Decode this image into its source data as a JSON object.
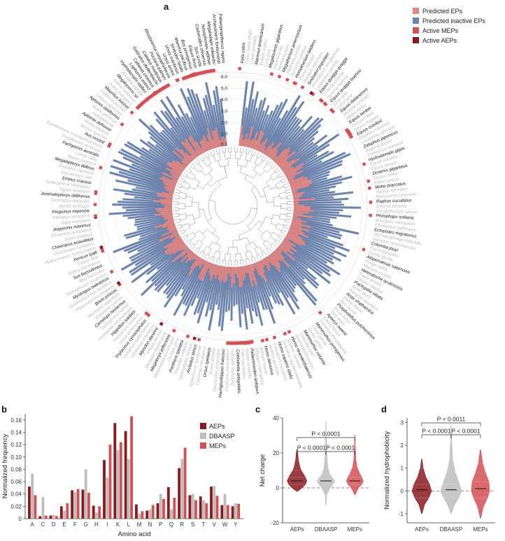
{
  "colors": {
    "predicted_eps": "#e8857c",
    "predicted_inactive": "#6c84ad",
    "active_meps": "#d35055",
    "active_aeps": "#8b1a1f",
    "dbaasp": "#bdbdbd",
    "text_dark": "#111111",
    "text_grey": "#b8b8b8"
  },
  "panel_labels": {
    "a": "a",
    "b": "b",
    "c": "c",
    "d": "d"
  },
  "chart_data": [
    {
      "panel": "a",
      "type": "bar",
      "layout": "circular",
      "legend_position": "top-right",
      "legend": [
        {
          "label": "Predicted EPs",
          "color": "#e8857c"
        },
        {
          "label": "Predicted inactive EPs",
          "color": "#6c84ad"
        },
        {
          "label": "Active MEPs",
          "color": "#d35055"
        },
        {
          "label": "Active AEPs",
          "color": "#8b1a1f"
        }
      ],
      "radial_ticks": [
        "0.1",
        "1.0",
        "2.0",
        "3.0",
        "4.0",
        "5.0",
        "6.0"
      ],
      "species_dark": [
        "Felis catus",
        "Mammut americanum",
        "Megaloceros giganteus",
        "Megatherium americanum",
        "Homotherium latidens",
        "Smilodon populator",
        "Equus quagga quagga",
        "Equus quagga boehmi",
        "Equus dalianensis",
        "Equus lambei",
        "Equus ovodovi",
        "Zalophus japonicus",
        "Hydrodamalis gigas",
        "Dinornis giganteus",
        "Moho braccatus",
        "Raphus cucullatus",
        "Pezophaps solitaria",
        "Ectopistes migratorius",
        "Columba jouyi",
        "Alopecoenas salamonis",
        "Heteralocha acutirostris",
        "Pachyptila vittata",
        "Anas chathamica",
        "Psephotellus pulcherrimus",
        "Apteryx owenii",
        "Mammuthus primigenius",
        "Mammuthus columbi",
        "Homo neanderthalensis",
        "Homo sapiens idaltu",
        "Homo denisova",
        "Palaeoloxodon antiquus",
        "Coelodonta antiquitatis",
        "Haringtonhippus francisci",
        "Ursus spelaeus",
        "Arctodus simus",
        "Panthera spelaea",
        "Megalonyx jeffersonii",
        "Mylodon darwinii",
        "Thylacinus cynocephalus",
        "Hippidion saldiasi",
        "Camelops hesternus",
        "Bison priscus",
        "Myotragus balearicus",
        "Sus bucculentus",
        "Xenicus lyalli",
        "Chaeropus ecaudatus",
        "Aepyornis maximus",
        "Pinguinus impennis",
        "Anomalopteryx didiformis",
        "Emeus crassus",
        "Megalapteryx didinus",
        "Pachyornis australis",
        "Aus innotat",
        "Aptornis defossor",
        "Aptornis otidiformis",
        "Mauritius kestrel",
        "Megaloceros sp.",
        "Hydrodamalis stelleri",
        "Lophornis extinct",
        "Callaeas cinereus",
        "Gallirallus dieffenbachii",
        "Cabalus modestus",
        "Porzana palmeri",
        "Rhodonessa caryophyllacea",
        "Ursus arctos",
        "Ursus maritimus",
        "Smilodon fatalis",
        "Mammut pacificus",
        "Bos primigenius",
        "Equus ferus",
        "Sus scrofa",
        "Castoroides ohioensis",
        "Nesophontes edithae",
        "Megaladapis edwardsi",
        "Archaeoindris fontoynontii",
        "Palaeopropithecus ingens"
      ],
      "species_grey": [
        "Canis lupus dingo",
        "Canis familiaris",
        "Vulpes vulpes",
        "Lynx lynx",
        "Panthera leo",
        "Panthera tigris",
        "Panthera pardus",
        "Acinonyx jubatus",
        "Puma concolor",
        "Neofelis nebulosa",
        "Prionailurus bengalensis",
        "Leopardus pardalis",
        "Crocuta crocuta",
        "Hyaena hyaena",
        "Gulo gulo",
        "Lutra lutra",
        "Mustela erminea",
        "Meles meles",
        "Procyon lotor",
        "Ailurus fulgens",
        "Elephas maximus",
        "Loxodonta africana",
        "Dugong dugon",
        "Trichechus manatus",
        "Equus caballus",
        "Equus asinus",
        "Equus zebra",
        "Equus grevyi",
        "Tapirus terrestris",
        "Rhinoceros unicornis",
        "Diceros bicornis",
        "Ceratotherium simum",
        "Bradypus variegatus",
        "Choloepus hoffmanni",
        "Myrmecophaga tridactyla",
        "Dasypus novemcinctus",
        "Pan troglodytes",
        "Gorilla gorilla",
        "Pongo abelii",
        "Macaca mulatta",
        "Papio anubis",
        "Cervus elaphus",
        "Alces alces",
        "Rangifer tarandus",
        "Dama dama",
        "Bos taurus",
        "Bison bison",
        "Ovis aries",
        "Capra hircus",
        "Camelus dromedarius",
        "Lama glama",
        "Gallus gallus",
        "Columba livia",
        "Anas platyrhynchos",
        "Struthio camelus",
        "Dromaius novaehollandiae",
        "Casuarius casuarius",
        "Apteryx australis",
        "Apteryx haastii",
        "Strigops habroptilus",
        "Nestor notabilis",
        "Falco punctatus",
        "Gallirallus australis",
        "Porphyrio hochstetteri",
        "Didunculus strigirostris",
        "Goura victoria",
        "Caloenas nicobarica",
        "Spheniscus humboldti",
        "Aptenodytes forsteri",
        "Physeter catodon",
        "Orcinus orca",
        "Balaenoptera musculus",
        "Monodon monoceros",
        "Phoca vitulina",
        "Odobenus rosmarus",
        "Zalophus californianus",
        "Ursus americanus",
        "Tremarctos ornatus",
        "Ailuropoda melanoleuca",
        "Sarcophilus harrisii",
        "Vombatus ursinus",
        "Macropus giganteus",
        "Phascolarctos cinereus",
        "Ornithorhynchus anatinus",
        "Tachyglossus aculeatus",
        "Mus musculus",
        "Rattus norvegicus",
        "Castor fiber",
        "Hydrochoerus hydrochaeris",
        "Oryctolagus cuniculus",
        "Sorex araneus",
        "Erinaceus europaeus",
        "Talpa europaea",
        "Pteropus vampyrus",
        "Myotis lucifugus",
        "Desmodus rotundus",
        "Tupaia belangeri",
        "Galeopterus variegatus",
        "Orycteropus afer",
        "Procavia capensis",
        "Manis javanica",
        "Lemur catta",
        "Propithecus verreauxi",
        "Daubentonia madagascariensis",
        "Tarsius syrichta",
        "Homo sapiens",
        "Hylobates lar",
        "Ateles geoffroyi",
        "Cebus capucinus",
        "Callithrix jacchus",
        "Aotus trivirgatus",
        "Saimiri sciureus",
        "Alouatta palliata"
      ]
    },
    {
      "panel": "b",
      "type": "bar",
      "xlabel": "Amino acid",
      "ylabel": "Normalized frequency",
      "ylim": [
        0,
        0.17
      ],
      "yticks": [
        "0",
        "0.02",
        "0.04",
        "0.06",
        "0.08",
        "0.10",
        "0.12",
        "0.14",
        "0.16"
      ],
      "legend_position": "top-right",
      "categories": [
        "A",
        "C",
        "D",
        "E",
        "F",
        "G",
        "H",
        "I",
        "K",
        "L",
        "M",
        "N",
        "P",
        "Q",
        "R",
        "S",
        "T",
        "V",
        "W",
        "Y"
      ],
      "series": [
        {
          "name": "AEPs",
          "values": [
            0.052,
            0.004,
            0.005,
            0.02,
            0.046,
            0.047,
            0.021,
            0.095,
            0.155,
            0.142,
            0.023,
            0.013,
            0.025,
            0.051,
            0.082,
            0.038,
            0.036,
            0.052,
            0.022,
            0.02
          ]
        },
        {
          "name": "DBAASP",
          "values": [
            0.073,
            0.035,
            0.006,
            0.013,
            0.043,
            0.08,
            0.01,
            0.067,
            0.111,
            0.097,
            0.008,
            0.015,
            0.04,
            0.015,
            0.097,
            0.04,
            0.03,
            0.053,
            0.04,
            0.025
          ]
        },
        {
          "name": "MEPs",
          "values": [
            0.038,
            0.005,
            0.004,
            0.025,
            0.048,
            0.042,
            0.02,
            0.12,
            0.124,
            0.166,
            0.012,
            0.022,
            0.032,
            0.034,
            0.115,
            0.03,
            0.025,
            0.037,
            0.022,
            0.024
          ]
        }
      ]
    },
    {
      "panel": "c",
      "type": "violin",
      "ylabel": "Net charge",
      "ylim": [
        -20,
        40
      ],
      "yticks": [
        "-20",
        "0",
        "20",
        "40"
      ],
      "categories": [
        "AEPs",
        "DBAASP",
        "MEPs"
      ],
      "medians": [
        4,
        4,
        4
      ],
      "annotations": [
        "P < 0.0001",
        "P < 0.0001",
        "P < 0.0001"
      ]
    },
    {
      "panel": "d",
      "type": "violin",
      "ylabel": "Normalized hydrophobicity",
      "ylim": [
        -1.4,
        3.2
      ],
      "yticks": [
        "-1",
        "0",
        "1",
        "2",
        "3"
      ],
      "categories": [
        "AEPs",
        "DBAASP",
        "MEPs"
      ],
      "medians": [
        0.05,
        0.05,
        0.1
      ],
      "annotations": [
        "P = 0.0011",
        "P < 0.0001",
        "P < 0.0001"
      ]
    }
  ]
}
